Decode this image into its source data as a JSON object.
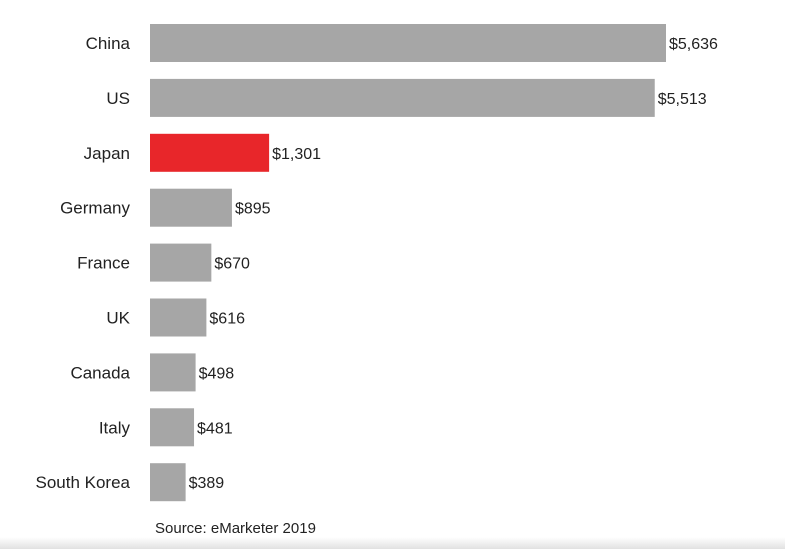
{
  "chart_data": {
    "type": "bar",
    "orientation": "horizontal",
    "categories": [
      "China",
      "US",
      "Japan",
      "Germany",
      "France",
      "UK",
      "Canada",
      "Italy",
      "South Korea"
    ],
    "values": [
      5636,
      5513,
      1301,
      895,
      670,
      616,
      498,
      481,
      389
    ],
    "value_labels": [
      "$5,636",
      "$5,513",
      "$1,301",
      "$895",
      "$670",
      "$616",
      "$498",
      "$481",
      "$389"
    ],
    "highlight_category": "Japan",
    "colors": {
      "default_bar": "#a6a6a6",
      "highlight_bar": "#e8262a"
    },
    "title": "",
    "xlabel": "",
    "ylabel": "",
    "grid": false,
    "legend": "none"
  },
  "footer": {
    "source": "Source: eMarketer 2019"
  }
}
